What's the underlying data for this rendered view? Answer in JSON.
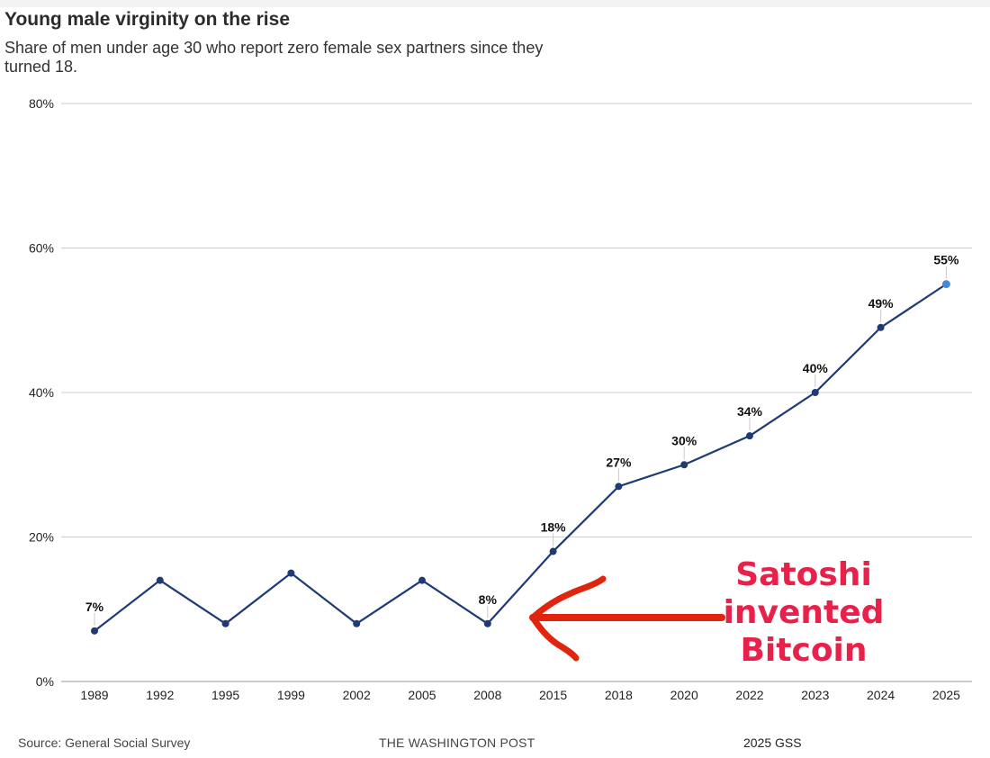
{
  "header": {
    "title": "Young male virginity on the rise",
    "subtitle": "Share of men under age 30 who report zero female sex partners since they turned 18."
  },
  "footer": {
    "source": "Source: General Social Survey",
    "brand": "THE WASHINGTON POST",
    "note": "2025 GSS"
  },
  "annotation": {
    "line1": "Satoshi invented",
    "line2": "Bitcoin",
    "color": "#e8214b",
    "arrow_color": "#e0240e"
  },
  "chart_data": {
    "type": "line",
    "categories": [
      "1989",
      "1992",
      "1995",
      "1999",
      "2002",
      "2005",
      "2008",
      "2015",
      "2018",
      "2020",
      "2022",
      "2023",
      "2024",
      "2025"
    ],
    "values": [
      7,
      14,
      8,
      15,
      8,
      14,
      8,
      18,
      27,
      30,
      34,
      40,
      49,
      55
    ],
    "labeled": [
      {
        "category": "1989",
        "label": "7%"
      },
      {
        "category": "2008",
        "label": "8%"
      },
      {
        "category": "2015",
        "label": "18%"
      },
      {
        "category": "2018",
        "label": "27%"
      },
      {
        "category": "2020",
        "label": "30%"
      },
      {
        "category": "2022",
        "label": "34%"
      },
      {
        "category": "2023",
        "label": "40%"
      },
      {
        "category": "2024",
        "label": "49%"
      },
      {
        "category": "2025",
        "label": "55%"
      }
    ],
    "y_ticks": [
      0,
      20,
      40,
      60,
      80
    ],
    "y_tick_labels": [
      "0%",
      "20%",
      "40%",
      "60%",
      "80%"
    ],
    "ylim": [
      0,
      80
    ],
    "grid": true,
    "line_color": "#1f3b73",
    "last_point_color": "#4a86d8",
    "title": "Young male virginity on the rise",
    "xlabel": "",
    "ylabel": ""
  }
}
